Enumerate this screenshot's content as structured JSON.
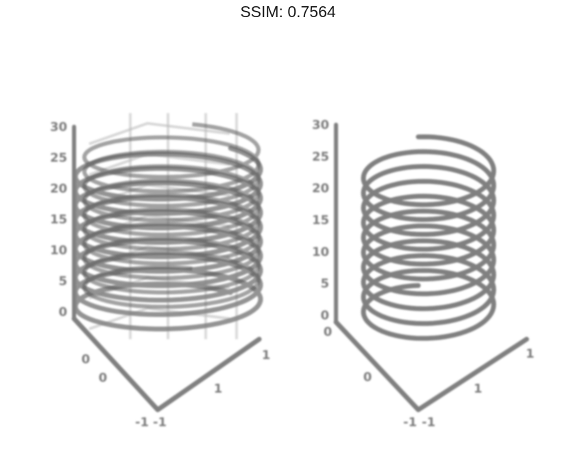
{
  "figure": {
    "title": "SSIM: 0.7564"
  },
  "colors": {
    "line": "#808080",
    "ghost": "#b7b7b7",
    "dark": "#555555",
    "text": "#1a1a1a"
  },
  "chart_data": [
    {
      "type": "line",
      "title": "",
      "z_ticks": [
        "30",
        "25",
        "20",
        "15",
        "10",
        "5",
        "0"
      ],
      "x_ticks": [
        "-1",
        "0",
        "1"
      ],
      "y_ticks": [
        "-1",
        "0",
        "1"
      ],
      "zlim": [
        0,
        30
      ],
      "grid": true,
      "series": [
        {
          "turns": 10,
          "radius": 1,
          "height": 30
        }
      ]
    },
    {
      "type": "line",
      "title": "",
      "z_ticks": [
        "30",
        "25",
        "20",
        "15",
        "10",
        "5",
        "0"
      ],
      "x_ticks": [
        "-1",
        "0",
        "1"
      ],
      "y_ticks": [
        "-1",
        "0",
        "1"
      ],
      "zlim": [
        0,
        30
      ],
      "grid": false,
      "series": [
        {
          "turns": 10,
          "radius": 1,
          "height": 30
        }
      ]
    }
  ]
}
